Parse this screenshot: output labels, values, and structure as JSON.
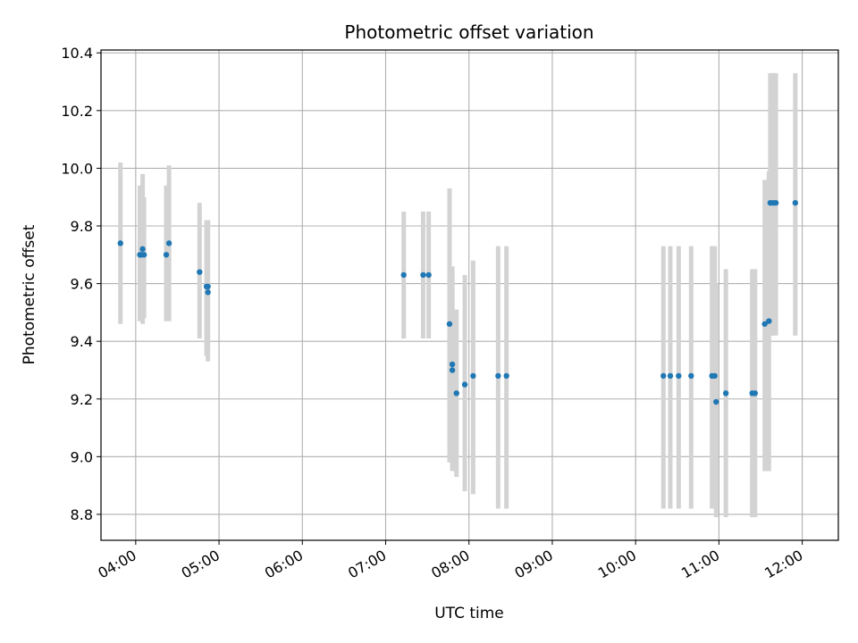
{
  "chart_data": {
    "type": "scatter",
    "title": "Photometric offset variation",
    "xlabel": "UTC time",
    "ylabel": "Photometric offset",
    "grid": true,
    "xlim": [
      "03:35",
      "12:26"
    ],
    "ylim": [
      8.71,
      10.41
    ],
    "x_ticks": [
      "04:00",
      "05:00",
      "06:00",
      "07:00",
      "08:00",
      "09:00",
      "10:00",
      "11:00",
      "12:00"
    ],
    "y_ticks": [
      "8.8",
      "9.0",
      "9.2",
      "9.4",
      "9.6",
      "9.8",
      "10.0",
      "10.2",
      "10.4"
    ],
    "colors": {
      "marker": "#1f77b4",
      "errorbar": "#d3d3d3",
      "grid": "#b0b0b0",
      "axes": "#000000"
    },
    "points": [
      {
        "x": "03:49",
        "y": 9.74,
        "err_low": 9.46,
        "err_high": 10.02
      },
      {
        "x": "04:03",
        "y": 9.7,
        "err_low": 9.47,
        "err_high": 9.94
      },
      {
        "x": "04:04",
        "y": 9.7,
        "err_low": 9.47,
        "err_high": 9.94
      },
      {
        "x": "04:05",
        "y": 9.72,
        "err_low": 9.46,
        "err_high": 9.98
      },
      {
        "x": "04:06",
        "y": 9.7,
        "err_low": 9.48,
        "err_high": 9.9
      },
      {
        "x": "04:22",
        "y": 9.7,
        "err_low": 9.47,
        "err_high": 9.94
      },
      {
        "x": "04:24",
        "y": 9.74,
        "err_low": 9.47,
        "err_high": 10.01
      },
      {
        "x": "04:46",
        "y": 9.64,
        "err_low": 9.41,
        "err_high": 9.88
      },
      {
        "x": "04:51",
        "y": 9.59,
        "err_low": 9.35,
        "err_high": 9.82
      },
      {
        "x": "04:52",
        "y": 9.57,
        "err_low": 9.33,
        "err_high": 9.82
      },
      {
        "x": "04:52",
        "y": 9.59,
        "err_low": 9.36,
        "err_high": 9.82
      },
      {
        "x": "07:13",
        "y": 9.63,
        "err_low": 9.41,
        "err_high": 9.85
      },
      {
        "x": "07:27",
        "y": 9.63,
        "err_low": 9.41,
        "err_high": 9.85
      },
      {
        "x": "07:31",
        "y": 9.63,
        "err_low": 9.41,
        "err_high": 9.85
      },
      {
        "x": "07:46",
        "y": 9.46,
        "err_low": 8.98,
        "err_high": 9.93
      },
      {
        "x": "07:48",
        "y": 9.3,
        "err_low": 8.95,
        "err_high": 9.66
      },
      {
        "x": "07:48",
        "y": 9.32,
        "err_low": 8.99,
        "err_high": 9.64
      },
      {
        "x": "07:51",
        "y": 9.22,
        "err_low": 8.93,
        "err_high": 9.51
      },
      {
        "x": "07:57",
        "y": 9.25,
        "err_low": 8.88,
        "err_high": 9.63
      },
      {
        "x": "08:03",
        "y": 9.28,
        "err_low": 8.87,
        "err_high": 9.68
      },
      {
        "x": "08:21",
        "y": 9.28,
        "err_low": 8.82,
        "err_high": 9.73
      },
      {
        "x": "08:27",
        "y": 9.28,
        "err_low": 8.82,
        "err_high": 9.73
      },
      {
        "x": "10:20",
        "y": 9.28,
        "err_low": 8.82,
        "err_high": 9.73
      },
      {
        "x": "10:25",
        "y": 9.28,
        "err_low": 8.82,
        "err_high": 9.73
      },
      {
        "x": "10:31",
        "y": 9.28,
        "err_low": 8.82,
        "err_high": 9.73
      },
      {
        "x": "10:40",
        "y": 9.28,
        "err_low": 8.82,
        "err_high": 9.73
      },
      {
        "x": "10:55",
        "y": 9.28,
        "err_low": 8.82,
        "err_high": 9.73
      },
      {
        "x": "10:57",
        "y": 9.28,
        "err_low": 8.82,
        "err_high": 9.73
      },
      {
        "x": "10:58",
        "y": 9.19,
        "err_low": 8.79,
        "err_high": 9.6
      },
      {
        "x": "11:05",
        "y": 9.22,
        "err_low": 8.79,
        "err_high": 9.65
      },
      {
        "x": "11:24",
        "y": 9.22,
        "err_low": 8.79,
        "err_high": 9.65
      },
      {
        "x": "11:26",
        "y": 9.22,
        "err_low": 8.79,
        "err_high": 9.65
      },
      {
        "x": "11:33",
        "y": 9.46,
        "err_low": 8.95,
        "err_high": 9.96
      },
      {
        "x": "11:36",
        "y": 9.47,
        "err_low": 8.95,
        "err_high": 9.99
      },
      {
        "x": "11:37",
        "y": 9.88,
        "err_low": 9.42,
        "err_high": 10.33
      },
      {
        "x": "11:39",
        "y": 9.88,
        "err_low": 9.42,
        "err_high": 10.33
      },
      {
        "x": "11:41",
        "y": 9.88,
        "err_low": 9.42,
        "err_high": 10.33
      },
      {
        "x": "11:55",
        "y": 9.88,
        "err_low": 9.42,
        "err_high": 10.33
      }
    ]
  }
}
